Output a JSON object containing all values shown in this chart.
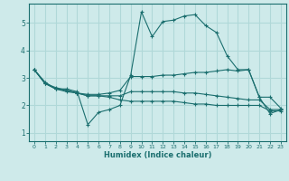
{
  "xlabel": "Humidex (Indice chaleur)",
  "ylabel": "",
  "background_color": "#ceeaea",
  "line_color": "#1a6e6e",
  "grid_color": "#b0d8d8",
  "xlim": [
    -0.5,
    23.5
  ],
  "ylim": [
    0.7,
    5.7
  ],
  "yticks": [
    1,
    2,
    3,
    4,
    5
  ],
  "xticks": [
    0,
    1,
    2,
    3,
    4,
    5,
    6,
    7,
    8,
    9,
    10,
    11,
    12,
    13,
    14,
    15,
    16,
    17,
    18,
    19,
    20,
    21,
    22,
    23
  ],
  "lines": [
    {
      "x": [
        0,
        1,
        2,
        3,
        4,
        5,
        6,
        7,
        8,
        9,
        10,
        11,
        12,
        13,
        14,
        15,
        16,
        17,
        18,
        19,
        20,
        21,
        22,
        23
      ],
      "y": [
        3.3,
        2.8,
        2.6,
        2.6,
        2.5,
        1.3,
        1.75,
        1.85,
        2.0,
        3.1,
        5.4,
        4.5,
        5.05,
        5.1,
        5.25,
        5.3,
        4.9,
        4.65,
        3.8,
        3.3,
        3.3,
        2.3,
        1.7,
        1.85
      ]
    },
    {
      "x": [
        0,
        1,
        2,
        3,
        4,
        5,
        6,
        7,
        8,
        9,
        10,
        11,
        12,
        13,
        14,
        15,
        16,
        17,
        18,
        19,
        20,
        21,
        22,
        23
      ],
      "y": [
        3.3,
        2.8,
        2.65,
        2.55,
        2.45,
        2.4,
        2.4,
        2.45,
        2.55,
        3.05,
        3.05,
        3.05,
        3.1,
        3.1,
        3.15,
        3.2,
        3.2,
        3.25,
        3.3,
        3.25,
        3.3,
        2.3,
        2.3,
        1.9
      ]
    },
    {
      "x": [
        0,
        1,
        2,
        3,
        4,
        5,
        6,
        7,
        8,
        9,
        10,
        11,
        12,
        13,
        14,
        15,
        16,
        17,
        18,
        19,
        20,
        21,
        22,
        23
      ],
      "y": [
        3.3,
        2.85,
        2.6,
        2.5,
        2.45,
        2.35,
        2.35,
        2.35,
        2.35,
        2.5,
        2.5,
        2.5,
        2.5,
        2.5,
        2.45,
        2.45,
        2.4,
        2.35,
        2.3,
        2.25,
        2.2,
        2.2,
        1.85,
        1.85
      ]
    },
    {
      "x": [
        0,
        1,
        2,
        3,
        4,
        5,
        6,
        7,
        8,
        9,
        10,
        11,
        12,
        13,
        14,
        15,
        16,
        17,
        18,
        19,
        20,
        21,
        22,
        23
      ],
      "y": [
        3.3,
        2.8,
        2.6,
        2.55,
        2.45,
        2.35,
        2.35,
        2.3,
        2.2,
        2.15,
        2.15,
        2.15,
        2.15,
        2.15,
        2.1,
        2.05,
        2.05,
        2.0,
        2.0,
        2.0,
        2.0,
        2.0,
        1.8,
        1.8
      ]
    }
  ]
}
